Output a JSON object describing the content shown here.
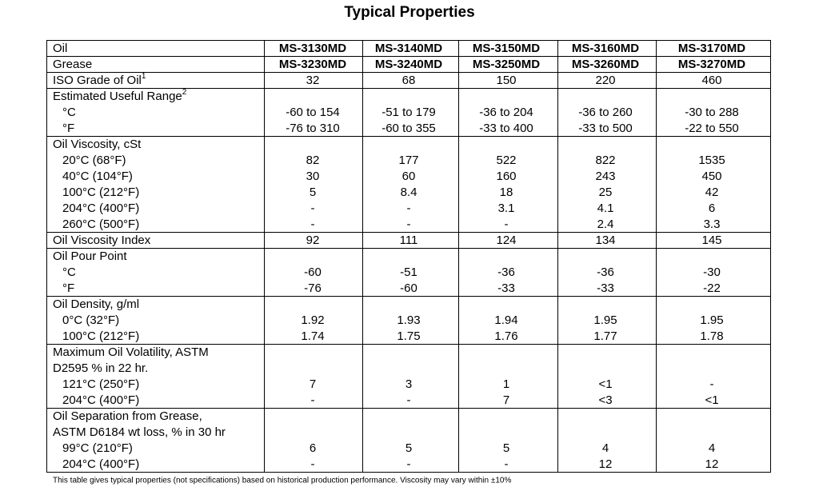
{
  "header": {
    "title": "Typical Properties"
  },
  "table": {
    "header": [
      {
        "label": "Oil",
        "values": [
          "MS-3130MD",
          "MS-3140MD",
          "MS-3150MD",
          "MS-3160MD",
          "MS-3170MD"
        ]
      },
      {
        "label": "Grease",
        "values": [
          "MS-3230MD",
          "MS-3240MD",
          "MS-3250MD",
          "MS-3260MD",
          "MS-3270MD"
        ]
      }
    ],
    "groups": [
      [
        {
          "label": "ISO Grade of Oil",
          "note": "1",
          "values": [
            "32",
            "68",
            "150",
            "220",
            "460"
          ]
        }
      ],
      [
        {
          "label": "Estimated Useful Range",
          "note": "2"
        },
        {
          "label": "°C",
          "values": [
            "-60 to 154",
            "-51 to 179",
            "-36 to 204",
            "-36 to 260",
            "-30 to 288"
          ]
        },
        {
          "label": "°F",
          "values": [
            "-76 to 310",
            "-60 to 355",
            "-33 to 400",
            "-33 to 500",
            "-22 to 550"
          ]
        }
      ],
      [
        {
          "label": "Oil Viscosity, cSt"
        },
        {
          "label": "20°C (68°F)",
          "values": [
            "82",
            "177",
            "522",
            "822",
            "1535"
          ]
        },
        {
          "label": "40°C (104°F)",
          "values": [
            "30",
            "60",
            "160",
            "243",
            "450"
          ]
        },
        {
          "label": "100°C (212°F)",
          "values": [
            "5",
            "8.4",
            "18",
            "25",
            "42"
          ]
        },
        {
          "label": "204°C (400°F)",
          "values": [
            "-",
            "-",
            "3.1",
            "4.1",
            "6"
          ]
        },
        {
          "label": "260°C (500°F)",
          "values": [
            "-",
            "-",
            "-",
            "2.4",
            "3.3"
          ]
        }
      ],
      [
        {
          "label": "Oil Viscosity Index",
          "values": [
            "92",
            "111",
            "124",
            "134",
            "145"
          ]
        }
      ],
      [
        {
          "label": "Oil Pour Point"
        },
        {
          "label": "°C",
          "values": [
            "-60",
            "-51",
            "-36",
            "-36",
            "-30"
          ]
        },
        {
          "label": "°F",
          "values": [
            "-76",
            "-60",
            "-33",
            "-33",
            "-22"
          ]
        }
      ],
      [
        {
          "label": "Oil Density, g/ml"
        },
        {
          "label": "0°C (32°F)",
          "values": [
            "1.92",
            "1.93",
            "1.94",
            "1.95",
            "1.95"
          ]
        },
        {
          "label": "100°C (212°F)",
          "values": [
            "1.74",
            "1.75",
            "1.76",
            "1.77",
            "1.78"
          ]
        }
      ],
      [
        {
          "label": "Maximum Oil Volatility, ASTM"
        },
        {
          "label": "D2595 % in 22 hr."
        },
        {
          "label": "121°C (250°F)",
          "values": [
            "7",
            "3",
            "1",
            "<1",
            "-"
          ]
        },
        {
          "label": "204°C (400°F)",
          "values": [
            "-",
            "-",
            "7",
            "<3",
            "<1"
          ]
        }
      ],
      [
        {
          "label": "Oil Separation from Grease,"
        },
        {
          "label": "ASTM D6184 wt loss, % in 30 hr"
        },
        {
          "label": "99°C (210°F)",
          "values": [
            "6",
            "5",
            "5",
            "4",
            "4"
          ]
        },
        {
          "label": "204°C (400°F)",
          "values": [
            "-",
            "-",
            "-",
            "12",
            "12"
          ]
        }
      ]
    ]
  },
  "footer": "This table gives typical properties (not specifications) based on historical production performance. Viscosity may vary within ±10%"
}
